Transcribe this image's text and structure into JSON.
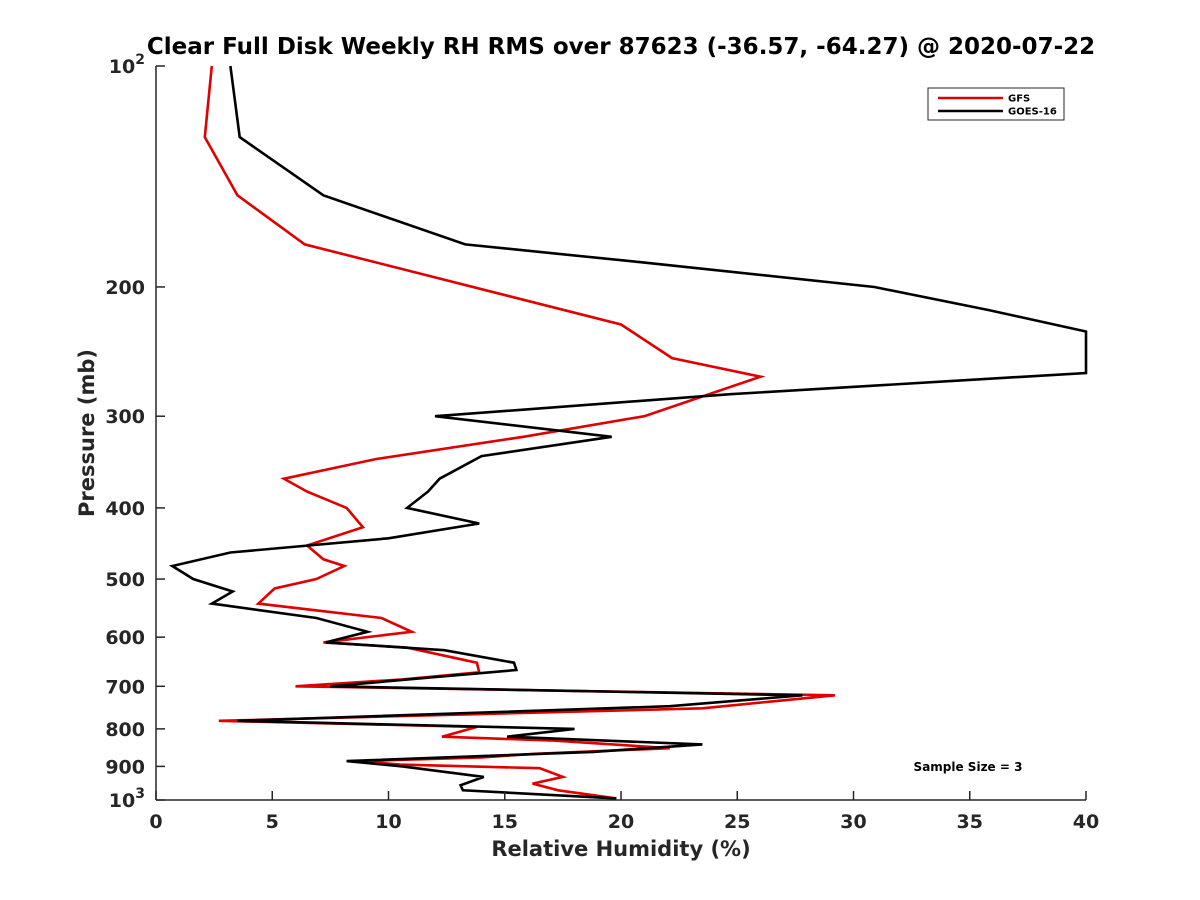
{
  "chart_data": {
    "type": "line",
    "title": "Clear Full Disk Weekly RH RMS over 87623 (-36.57, -64.27) @ 2020-07-22",
    "xlabel": "Relative Humidity (%)",
    "ylabel": "Pressure (mb)",
    "xlim": [
      0,
      40
    ],
    "ylim": [
      100,
      1000
    ],
    "y_scale": "log",
    "y_reversed": true,
    "grid": false,
    "legend_position": "top-right",
    "annotation": "Sample Size = 3",
    "x_ticks": [
      "0",
      "5",
      "10",
      "15",
      "20",
      "25",
      "30",
      "35",
      "40"
    ],
    "y_ticks": [
      {
        "value": 100,
        "base": "10",
        "exp": "2"
      },
      {
        "value": 200,
        "label": "200"
      },
      {
        "value": 300,
        "label": "300"
      },
      {
        "value": 400,
        "label": "400"
      },
      {
        "value": 500,
        "label": "500"
      },
      {
        "value": 600,
        "label": "600"
      },
      {
        "value": 700,
        "label": "700"
      },
      {
        "value": 800,
        "label": "800"
      },
      {
        "value": 900,
        "label": "900"
      },
      {
        "value": 1000,
        "base": "10",
        "exp": "3"
      }
    ],
    "series": [
      {
        "name": "GFS",
        "color": "#e00000",
        "points": [
          [
            2.4,
            100
          ],
          [
            2.1,
            125
          ],
          [
            3.5,
            150
          ],
          [
            6.4,
            175
          ],
          [
            20,
            225
          ],
          [
            22.2,
            250
          ],
          [
            26,
            265
          ],
          [
            21,
            300
          ],
          [
            15.8,
            320
          ],
          [
            9.5,
            343
          ],
          [
            5.5,
            365
          ],
          [
            6.5,
            380
          ],
          [
            8.2,
            400
          ],
          [
            8.9,
            425
          ],
          [
            6.5,
            450
          ],
          [
            7.2,
            470
          ],
          [
            8.1,
            480
          ],
          [
            6.9,
            500
          ],
          [
            5.1,
            515
          ],
          [
            4.4,
            540
          ],
          [
            9.7,
            565
          ],
          [
            11,
            590
          ],
          [
            7.2,
            610
          ],
          [
            10.8,
            620
          ],
          [
            12.8,
            640
          ],
          [
            13.8,
            650
          ],
          [
            13.9,
            670
          ],
          [
            10.6,
            685
          ],
          [
            6,
            700
          ],
          [
            29.2,
            720
          ],
          [
            23.5,
            750
          ],
          [
            2.7,
            780
          ],
          [
            13.8,
            795
          ],
          [
            12.3,
            820
          ],
          [
            17.1,
            830
          ],
          [
            22.1,
            850
          ],
          [
            16.3,
            865
          ],
          [
            14,
            875
          ],
          [
            8.8,
            885
          ],
          [
            10.5,
            895
          ],
          [
            16.5,
            905
          ],
          [
            17.5,
            930
          ],
          [
            16.2,
            950
          ],
          [
            17.3,
            970
          ],
          [
            19.8,
            995
          ]
        ]
      },
      {
        "name": "GOES-16",
        "color": "#000000",
        "points": [
          [
            3.2,
            100
          ],
          [
            3.6,
            125
          ],
          [
            7.2,
            150
          ],
          [
            13.3,
            175
          ],
          [
            20.8,
            185
          ],
          [
            30.9,
            200
          ],
          [
            35.8,
            215
          ],
          [
            40,
            230
          ],
          [
            40,
            262
          ],
          [
            24.7,
            280
          ],
          [
            12,
            300
          ],
          [
            19.6,
            320
          ],
          [
            14,
            340
          ],
          [
            12.2,
            365
          ],
          [
            11.7,
            380
          ],
          [
            10.8,
            400
          ],
          [
            13.9,
            420
          ],
          [
            10,
            440
          ],
          [
            3.2,
            460
          ],
          [
            0.7,
            480
          ],
          [
            1.6,
            500
          ],
          [
            3.3,
            520
          ],
          [
            2.4,
            540
          ],
          [
            6.9,
            565
          ],
          [
            9.1,
            590
          ],
          [
            7.3,
            610
          ],
          [
            12.4,
            625
          ],
          [
            15.4,
            650
          ],
          [
            15.5,
            665
          ],
          [
            12,
            680
          ],
          [
            7.5,
            700
          ],
          [
            27.8,
            720
          ],
          [
            22.1,
            745
          ],
          [
            3.5,
            780
          ],
          [
            18,
            800
          ],
          [
            15.1,
            820
          ],
          [
            23.5,
            840
          ],
          [
            18.8,
            860
          ],
          [
            8.2,
            885
          ],
          [
            10.6,
            900
          ],
          [
            14.1,
            930
          ],
          [
            13.1,
            955
          ],
          [
            13.2,
            970
          ],
          [
            19.8,
            995
          ]
        ]
      }
    ]
  }
}
